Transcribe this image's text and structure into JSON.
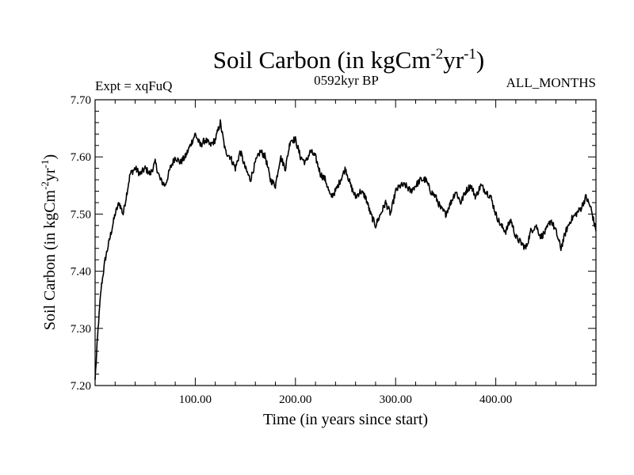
{
  "chart_data": {
    "type": "line",
    "title": "Soil Carbon (in kgCm",
    "title_units": {
      "sup1": "-2",
      "mid": "yr",
      "sup2": "-1",
      "end": ")"
    },
    "subtitle_left": "Expt = xqFuQ",
    "subtitle_center": "0592kyr BP",
    "subtitle_right": "ALL_MONTHS",
    "xlabel": "Time (in years since start)",
    "ylabel": "Soil Carbon (in kgCm",
    "ylabel_units": {
      "sup1": "-2",
      "mid": "yr",
      "sup2": "-1",
      "end": ")"
    },
    "xlim": [
      0,
      500
    ],
    "ylim": [
      7.2,
      7.7
    ],
    "x_ticks": [
      100,
      200,
      300,
      400
    ],
    "x_tick_labels": [
      "100.00",
      "200.00",
      "300.00",
      "400.00"
    ],
    "y_ticks": [
      7.2,
      7.3,
      7.4,
      7.5,
      7.6,
      7.7
    ],
    "y_tick_labels": [
      "7.20",
      "7.30",
      "7.40",
      "7.50",
      "7.60",
      "7.70"
    ],
    "series": [
      {
        "name": "Soil Carbon",
        "color": "#000000",
        "x": [
          0,
          3,
          6,
          10,
          15,
          20,
          24,
          28,
          32,
          35,
          40,
          45,
          50,
          55,
          60,
          65,
          70,
          75,
          80,
          85,
          90,
          95,
          100,
          105,
          110,
          115,
          120,
          125,
          130,
          135,
          140,
          145,
          150,
          155,
          160,
          165,
          170,
          175,
          180,
          185,
          190,
          195,
          200,
          205,
          210,
          215,
          220,
          225,
          230,
          235,
          240,
          245,
          250,
          255,
          260,
          265,
          270,
          275,
          280,
          285,
          290,
          295,
          300,
          305,
          310,
          315,
          320,
          325,
          330,
          335,
          340,
          345,
          350,
          355,
          360,
          365,
          370,
          375,
          380,
          385,
          390,
          395,
          400,
          405,
          410,
          415,
          420,
          425,
          430,
          435,
          440,
          445,
          450,
          455,
          460,
          465,
          470,
          475,
          480,
          485,
          490,
          495,
          500
        ],
        "values": [
          7.21,
          7.3,
          7.37,
          7.42,
          7.46,
          7.5,
          7.52,
          7.5,
          7.54,
          7.57,
          7.58,
          7.57,
          7.58,
          7.57,
          7.59,
          7.56,
          7.55,
          7.58,
          7.6,
          7.59,
          7.6,
          7.62,
          7.64,
          7.62,
          7.63,
          7.62,
          7.63,
          7.66,
          7.61,
          7.6,
          7.58,
          7.61,
          7.58,
          7.56,
          7.59,
          7.61,
          7.6,
          7.56,
          7.55,
          7.6,
          7.58,
          7.63,
          7.63,
          7.6,
          7.59,
          7.61,
          7.6,
          7.57,
          7.56,
          7.53,
          7.54,
          7.56,
          7.58,
          7.55,
          7.53,
          7.54,
          7.53,
          7.5,
          7.48,
          7.5,
          7.52,
          7.5,
          7.54,
          7.55,
          7.55,
          7.54,
          7.55,
          7.56,
          7.56,
          7.54,
          7.53,
          7.51,
          7.5,
          7.52,
          7.54,
          7.52,
          7.54,
          7.55,
          7.53,
          7.55,
          7.54,
          7.53,
          7.5,
          7.48,
          7.47,
          7.49,
          7.46,
          7.45,
          7.44,
          7.47,
          7.48,
          7.46,
          7.47,
          7.49,
          7.47,
          7.44,
          7.47,
          7.49,
          7.5,
          7.51,
          7.53,
          7.51,
          7.47
        ]
      }
    ]
  }
}
